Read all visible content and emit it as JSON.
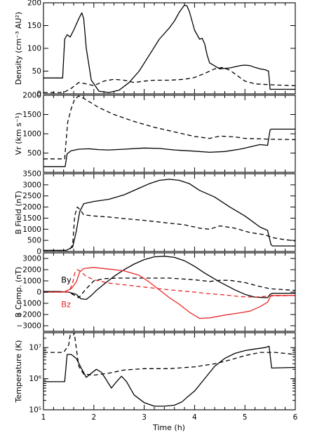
{
  "chart_data": [
    {
      "type": "line",
      "ylabel": "Density (cm⁻³ AU²)",
      "ylim": [
        0,
        200
      ],
      "xlim": [
        1,
        6
      ],
      "yticks": [
        0,
        50,
        100,
        150,
        200
      ],
      "ytick_labels": [
        "0",
        "50",
        "100",
        "150",
        "200"
      ],
      "series": [
        {
          "style": "solid",
          "color": "#000000",
          "x": [
            1.0,
            1.38,
            1.42,
            1.47,
            1.53,
            1.6,
            1.7,
            1.76,
            1.8,
            1.85,
            1.95,
            2.1,
            2.3,
            2.5,
            2.7,
            2.9,
            3.1,
            3.3,
            3.5,
            3.6,
            3.7,
            3.8,
            3.85,
            3.9,
            4.0,
            4.1,
            4.15,
            4.2,
            4.25,
            4.3,
            4.5,
            4.7,
            4.9,
            5.0,
            5.1,
            5.2,
            5.3,
            5.4,
            5.47,
            5.5,
            5.55,
            6.0
          ],
          "y": [
            35,
            35,
            120,
            130,
            125,
            140,
            165,
            178,
            165,
            100,
            30,
            6,
            3,
            8,
            25,
            50,
            85,
            120,
            145,
            160,
            180,
            195,
            193,
            180,
            140,
            120,
            122,
            110,
            85,
            68,
            55,
            57,
            62,
            63,
            62,
            58,
            55,
            53,
            50,
            10,
            10,
            10
          ]
        },
        {
          "style": "dashed",
          "color": "#000000",
          "x": [
            1.0,
            1.4,
            1.55,
            1.7,
            1.85,
            2.0,
            2.2,
            2.4,
            2.6,
            2.8,
            3.0,
            3.2,
            3.5,
            3.8,
            4.0,
            4.2,
            4.4,
            4.55,
            4.7,
            4.85,
            5.0,
            5.2,
            5.5,
            6.0
          ],
          "y": [
            3,
            3,
            12,
            25,
            22,
            18,
            28,
            32,
            30,
            25,
            28,
            30,
            30,
            32,
            36,
            45,
            55,
            58,
            52,
            40,
            28,
            22,
            20,
            18
          ]
        }
      ]
    },
    {
      "type": "line",
      "ylabel": "Vr (km s⁻¹)",
      "ylim": [
        0,
        2000
      ],
      "xlim": [
        1,
        6
      ],
      "yticks": [
        500,
        1000,
        1500,
        2000
      ],
      "ytick_labels": [
        "500",
        "1000",
        "1500",
        "2000"
      ],
      "series": [
        {
          "style": "solid",
          "color": "#000000",
          "x": [
            1.0,
            1.43,
            1.47,
            1.55,
            1.7,
            1.9,
            2.1,
            2.3,
            2.6,
            3.0,
            3.3,
            3.6,
            4.0,
            4.3,
            4.6,
            4.9,
            5.1,
            5.3,
            5.45,
            5.5,
            5.52,
            6.0
          ],
          "y": [
            150,
            150,
            480,
            560,
            600,
            610,
            590,
            580,
            600,
            630,
            620,
            580,
            550,
            520,
            540,
            600,
            660,
            720,
            700,
            1100,
            1120,
            1120
          ]
        },
        {
          "style": "dashed",
          "color": "#000000",
          "x": [
            1.0,
            1.42,
            1.48,
            1.55,
            1.62,
            1.7,
            1.8,
            1.95,
            2.1,
            2.4,
            2.8,
            3.2,
            3.6,
            4.0,
            4.3,
            4.5,
            4.8,
            5.0,
            5.3,
            5.5,
            6.0
          ],
          "y": [
            350,
            350,
            1300,
            1650,
            1900,
            1980,
            1920,
            1800,
            1680,
            1500,
            1320,
            1170,
            1050,
            930,
            880,
            940,
            920,
            880,
            870,
            860,
            850
          ]
        }
      ]
    },
    {
      "type": "line",
      "ylabel": "B Field (nT)",
      "ylim": [
        0,
        3500
      ],
      "xlim": [
        1,
        6
      ],
      "yticks": [
        0,
        500,
        1000,
        1500,
        2000,
        2500,
        3000,
        3500
      ],
      "ytick_labels": [
        "0",
        "500",
        "1000",
        "1500",
        "2000",
        "2500",
        "3000",
        "3500"
      ],
      "series": [
        {
          "style": "solid",
          "color": "#000000",
          "x": [
            1.0,
            1.45,
            1.58,
            1.65,
            1.72,
            1.8,
            2.0,
            2.3,
            2.6,
            2.9,
            3.1,
            3.3,
            3.5,
            3.7,
            3.9,
            4.1,
            4.4,
            4.7,
            5.0,
            5.3,
            5.45,
            5.52,
            5.55,
            6.0
          ],
          "y": [
            50,
            50,
            200,
            900,
            1800,
            2150,
            2250,
            2350,
            2550,
            2850,
            3050,
            3200,
            3250,
            3200,
            3050,
            2750,
            2450,
            2000,
            1600,
            1100,
            950,
            300,
            250,
            250
          ]
        },
        {
          "style": "dashed",
          "color": "#000000",
          "x": [
            1.0,
            1.5,
            1.58,
            1.62,
            1.67,
            1.72,
            1.8,
            2.0,
            2.3,
            2.6,
            3.0,
            3.4,
            3.8,
            4.1,
            4.3,
            4.5,
            4.8,
            5.1,
            5.4,
            5.55,
            5.8,
            6.0
          ],
          "y": [
            0,
            0,
            300,
            1600,
            2000,
            1900,
            1650,
            1600,
            1550,
            1480,
            1400,
            1300,
            1200,
            1050,
            1000,
            1150,
            1050,
            850,
            750,
            620,
            530,
            480
          ]
        }
      ]
    },
    {
      "type": "line",
      "ylabel": "B Comp. (nT)",
      "ylim": [
        -3500,
        3500
      ],
      "xlim": [
        1,
        6
      ],
      "yticks": [
        -3000,
        -2000,
        -1000,
        0,
        1000,
        2000,
        3000
      ],
      "ytick_labels": [
        "−3000",
        "−2000",
        "−1000",
        "0",
        "1000",
        "2000",
        "3000"
      ],
      "annotations": [
        {
          "text": "By",
          "x": 1.35,
          "y": 1100,
          "color": "#000000"
        },
        {
          "text": "Bz",
          "x": 1.35,
          "y": -1100,
          "color": "#e8282a"
        }
      ],
      "series": [
        {
          "name": "By",
          "style": "solid",
          "color": "#000000",
          "x": [
            1.0,
            1.3,
            1.5,
            1.65,
            1.75,
            1.85,
            1.95,
            2.05,
            2.2,
            2.4,
            2.6,
            2.8,
            3.0,
            3.2,
            3.4,
            3.6,
            3.8,
            4.0,
            4.2,
            4.5,
            4.8,
            5.0,
            5.2,
            5.45,
            5.5,
            5.55,
            6.0
          ],
          "y": [
            50,
            50,
            0,
            -200,
            -600,
            -650,
            -300,
            150,
            700,
            1400,
            2000,
            2500,
            2900,
            3150,
            3200,
            3100,
            2800,
            2300,
            1700,
            900,
            200,
            -200,
            -450,
            -500,
            -200,
            -100,
            -100
          ]
        },
        {
          "name": "By",
          "style": "dashed",
          "color": "#000000",
          "x": [
            1.0,
            1.5,
            1.6,
            1.7,
            1.85,
            2.0,
            2.2,
            2.5,
            3.0,
            3.5,
            4.0,
            4.3,
            4.5,
            4.7,
            5.0,
            5.3,
            5.5,
            6.0
          ],
          "y": [
            0,
            0,
            -250,
            -500,
            300,
            1000,
            1200,
            1250,
            1250,
            1250,
            1100,
            950,
            1050,
            1050,
            850,
            500,
            300,
            150
          ]
        },
        {
          "name": "Bz",
          "style": "solid",
          "color": "#e8282a",
          "x": [
            1.0,
            1.4,
            1.55,
            1.65,
            1.72,
            1.8,
            2.0,
            2.3,
            2.6,
            2.9,
            3.1,
            3.3,
            3.5,
            3.7,
            3.9,
            4.1,
            4.3,
            4.6,
            4.9,
            5.1,
            5.3,
            5.45,
            5.52,
            5.6,
            6.0
          ],
          "y": [
            0,
            0,
            300,
            900,
            1800,
            2100,
            2200,
            2050,
            1900,
            1500,
            900,
            200,
            -500,
            -1100,
            -1800,
            -2350,
            -2300,
            -2050,
            -1850,
            -1700,
            -1300,
            -900,
            -300,
            -300,
            -300
          ]
        },
        {
          "name": "Bz",
          "style": "dashed",
          "color": "#e8282a",
          "x": [
            1.0,
            1.5,
            1.58,
            1.62,
            1.67,
            1.72,
            1.85,
            2.0,
            2.3,
            2.6,
            3.0,
            3.5,
            4.0,
            4.3,
            4.6,
            4.9,
            5.2,
            5.5,
            6.0
          ],
          "y": [
            0,
            0,
            800,
            1700,
            2000,
            1900,
            1400,
            1100,
            800,
            650,
            450,
            200,
            0,
            -150,
            -250,
            -400,
            -450,
            -350,
            -300
          ]
        }
      ]
    },
    {
      "type": "line",
      "ylabel": "Temperature (K)",
      "yscale": "log",
      "ylim": [
        100000,
        30000000
      ],
      "xlim": [
        1,
        6
      ],
      "xlabel": "Time (h)",
      "xticks": [
        1,
        2,
        3,
        4,
        5,
        6
      ],
      "xtick_labels": [
        "1",
        "2",
        "3",
        "4",
        "5",
        "6"
      ],
      "yticks": [
        100000,
        1000000,
        10000000
      ],
      "ytick_labels": [
        "10⁵",
        "10⁶",
        "10⁷"
      ],
      "series": [
        {
          "style": "solid",
          "color": "#000000",
          "x": [
            1.0,
            1.42,
            1.47,
            1.55,
            1.65,
            1.75,
            1.85,
            1.95,
            2.05,
            2.15,
            2.25,
            2.35,
            2.45,
            2.55,
            2.65,
            2.8,
            3.0,
            3.2,
            3.4,
            3.6,
            3.75,
            3.85,
            4.0,
            4.2,
            4.4,
            4.6,
            4.8,
            5.0,
            5.2,
            5.4,
            5.48,
            5.53,
            6.0
          ],
          "y": [
            800000,
            800000,
            6000000,
            6000000,
            4500000,
            2200000,
            1100000,
            1500000,
            2000000,
            1600000,
            900000,
            500000,
            800000,
            1200000,
            800000,
            300000,
            170000,
            130000,
            130000,
            140000,
            180000,
            250000,
            400000,
            1000000,
            2500000,
            4500000,
            6500000,
            8000000,
            9000000,
            10000000,
            11000000,
            2200000,
            2300000
          ]
        },
        {
          "style": "dashed",
          "color": "#000000",
          "x": [
            1.0,
            1.4,
            1.5,
            1.55,
            1.6,
            1.7,
            1.8,
            2.0,
            2.3,
            2.6,
            3.0,
            3.5,
            4.0,
            4.4,
            4.7,
            5.0,
            5.3,
            5.6,
            6.0
          ],
          "y": [
            7000000,
            7000000,
            12000000,
            40000000,
            40000000,
            2500000,
            1400000,
            1300000,
            1500000,
            1900000,
            2100000,
            2100000,
            2400000,
            3000000,
            4000000,
            5500000,
            7000000,
            7000000,
            6000000
          ]
        }
      ]
    }
  ]
}
